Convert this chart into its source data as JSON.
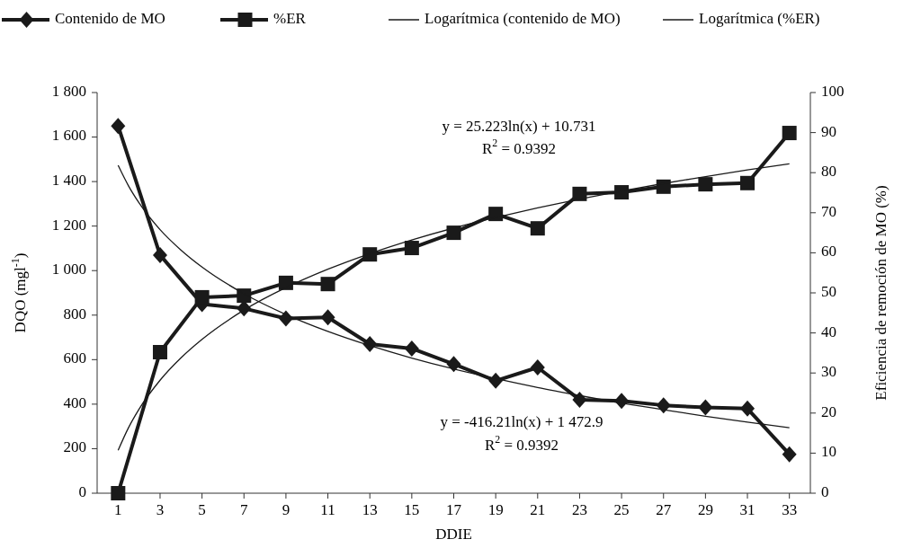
{
  "chart_data": {
    "type": "line",
    "xlabel": "DDIE",
    "ylabel": "DQO (mgl$^{-1}$)",
    "y2label": "Eficiencia de remoción de MO (%)",
    "x": [
      1,
      3,
      5,
      7,
      9,
      11,
      13,
      15,
      17,
      19,
      21,
      23,
      25,
      27,
      29,
      31,
      33
    ],
    "xlim": [
      0,
      34
    ],
    "xticks": [
      1,
      3,
      5,
      7,
      9,
      11,
      13,
      15,
      17,
      19,
      21,
      23,
      25,
      27,
      29,
      31,
      33
    ],
    "ylim": [
      0,
      1800
    ],
    "yticks": [
      0,
      200,
      400,
      600,
      800,
      {
        "value": 1000,
        "label": "1 000"
      },
      {
        "value": 1200,
        "label": "1 200"
      },
      {
        "value": 1400,
        "label": "1 400"
      },
      {
        "value": 1600,
        "label": "1 600"
      },
      {
        "value": 1800,
        "label": "1 800"
      }
    ],
    "y2lim": [
      0,
      100
    ],
    "y2ticks": [
      0,
      10,
      20,
      30,
      40,
      50,
      60,
      70,
      80,
      90,
      100
    ],
    "legend": "top",
    "grid": false,
    "series": [
      {
        "name": "Contenido de MO",
        "color": "#1a1a1a",
        "marker": "diamond",
        "values": [
          1650,
          1070,
          850,
          830,
          785,
          790,
          670,
          650,
          580,
          505,
          565,
          420,
          415,
          395,
          385,
          380,
          175
        ]
      },
      {
        "name": "%ER",
        "color": "#1a1a1a",
        "marker": "square",
        "axis": "y2",
        "values": [
          0,
          35.2,
          48.9,
          49.3,
          52.5,
          52.2,
          59.6,
          61.2,
          65,
          69.7,
          66.1,
          74.7,
          75.1,
          76.5,
          77.1,
          77.4,
          89.9
        ]
      },
      {
        "name": "Logarítmica (contenido de MO)",
        "color": "#1a1a1a",
        "marker": "none",
        "x": [
          1,
          1.5,
          2,
          3,
          4,
          5,
          7,
          9,
          11,
          13,
          15,
          17,
          19,
          21,
          23,
          25,
          27,
          29,
          31,
          33
        ],
        "values": [
          1473,
          1380,
          1304,
          1184,
          1092,
          1016,
          896,
          803,
          727,
          663,
          607,
          558,
          515,
          475,
          439,
          405,
          375,
          346,
          319,
          294
        ]
      },
      {
        "name": "Logarítmica (%ER)",
        "color": "#1a1a1a",
        "marker": "none",
        "axis": "y2",
        "x": [
          1,
          1.5,
          2,
          3,
          4,
          5,
          7,
          9,
          11,
          13,
          15,
          17,
          19,
          21,
          23,
          25,
          27,
          29,
          31,
          33
        ],
        "values": [
          10.7,
          16.4,
          21.0,
          28.2,
          33.8,
          38.4,
          45.7,
          51.3,
          55.9,
          59.8,
          63.2,
          66.2,
          68.8,
          71.2,
          73.4,
          75.4,
          77.3,
          79.0,
          80.7,
          82.2
        ]
      }
    ],
    "annotations": [
      "y = 25.223ln(x) + 10.731",
      "R$^{2}$ = 0.9392",
      "y = -416.21ln(x) + 1 472.9",
      "R$^{2}$ = 0.9392"
    ]
  }
}
